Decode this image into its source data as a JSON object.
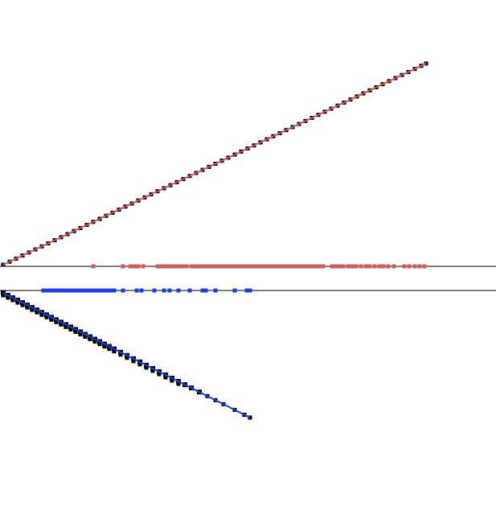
{
  "chart_data": {
    "type": "scatter",
    "grid": false,
    "legend": "none",
    "xlim": [
      0,
      617
    ],
    "ylim": [
      -645,
      0
    ],
    "colors": {
      "upper": "#cd5c5c",
      "lower": "#1f3ee0",
      "mark": "#000000",
      "axis": "#000000"
    },
    "axis_lines": [
      {
        "name": "upper-axis-line",
        "y": -331
      },
      {
        "name": "lower-axis-line",
        "y": -361
      }
    ],
    "series": [
      {
        "color_key": "upper",
        "trend": {
          "x": [
            4,
            530
          ],
          "y": [
            -329,
            -79
          ]
        },
        "rug_y": -331,
        "x": [
          4,
          12,
          20,
          28,
          36,
          44,
          52,
          60,
          68,
          76,
          84,
          92,
          100,
          108,
          116,
          124,
          132,
          140,
          148,
          156,
          164,
          172,
          180,
          188,
          196,
          204,
          212,
          220,
          228,
          236,
          244,
          252,
          260,
          268,
          276,
          284,
          292,
          300,
          308,
          316,
          324,
          332,
          340,
          348,
          356,
          364,
          372,
          380,
          388,
          396,
          404,
          412,
          420,
          428,
          436,
          444,
          452,
          460,
          468,
          476,
          484,
          492,
          500,
          508,
          516,
          524,
          530
        ],
        "rug_x": [
          116,
          153,
          162,
          167,
          172,
          178,
          196,
          200,
          205,
          210,
          214,
          218,
          222,
          227,
          232,
          238,
          243,
          248,
          253,
          258,
          262,
          266,
          270,
          274,
          278,
          282,
          286,
          290,
          294,
          298,
          302,
          306,
          310,
          314,
          318,
          322,
          326,
          330,
          334,
          338,
          342,
          346,
          350,
          354,
          358,
          362,
          366,
          370,
          374,
          378,
          382,
          386,
          390,
          394,
          398,
          402,
          413,
          418,
          422,
          427,
          433,
          438,
          443,
          449,
          455,
          460,
          466,
          472,
          477,
          483,
          490,
          503,
          509,
          516,
          522,
          528
        ]
      },
      {
        "color_key": "lower",
        "trend": {
          "x": [
            4,
            311
          ],
          "y": [
            -364,
            -519
          ]
        },
        "rug_y": -361,
        "x": [
          4,
          10,
          16,
          22,
          28,
          34,
          40,
          46,
          52,
          58,
          64,
          70,
          76,
          82,
          88,
          94,
          100,
          106,
          112,
          118,
          124,
          130,
          136,
          142,
          150,
          158,
          166,
          174,
          182,
          190,
          198,
          206,
          214,
          222,
          230,
          238,
          248,
          258,
          268,
          278,
          292,
          304,
          311
        ],
        "rug_x": [
          54,
          58,
          62,
          66,
          70,
          74,
          78,
          82,
          86,
          90,
          94,
          98,
          102,
          106,
          110,
          114,
          118,
          122,
          126,
          130,
          134,
          138,
          142,
          153,
          170,
          176,
          192,
          204,
          211,
          222,
          236,
          252,
          256,
          268,
          292,
          307,
          311
        ]
      }
    ]
  }
}
